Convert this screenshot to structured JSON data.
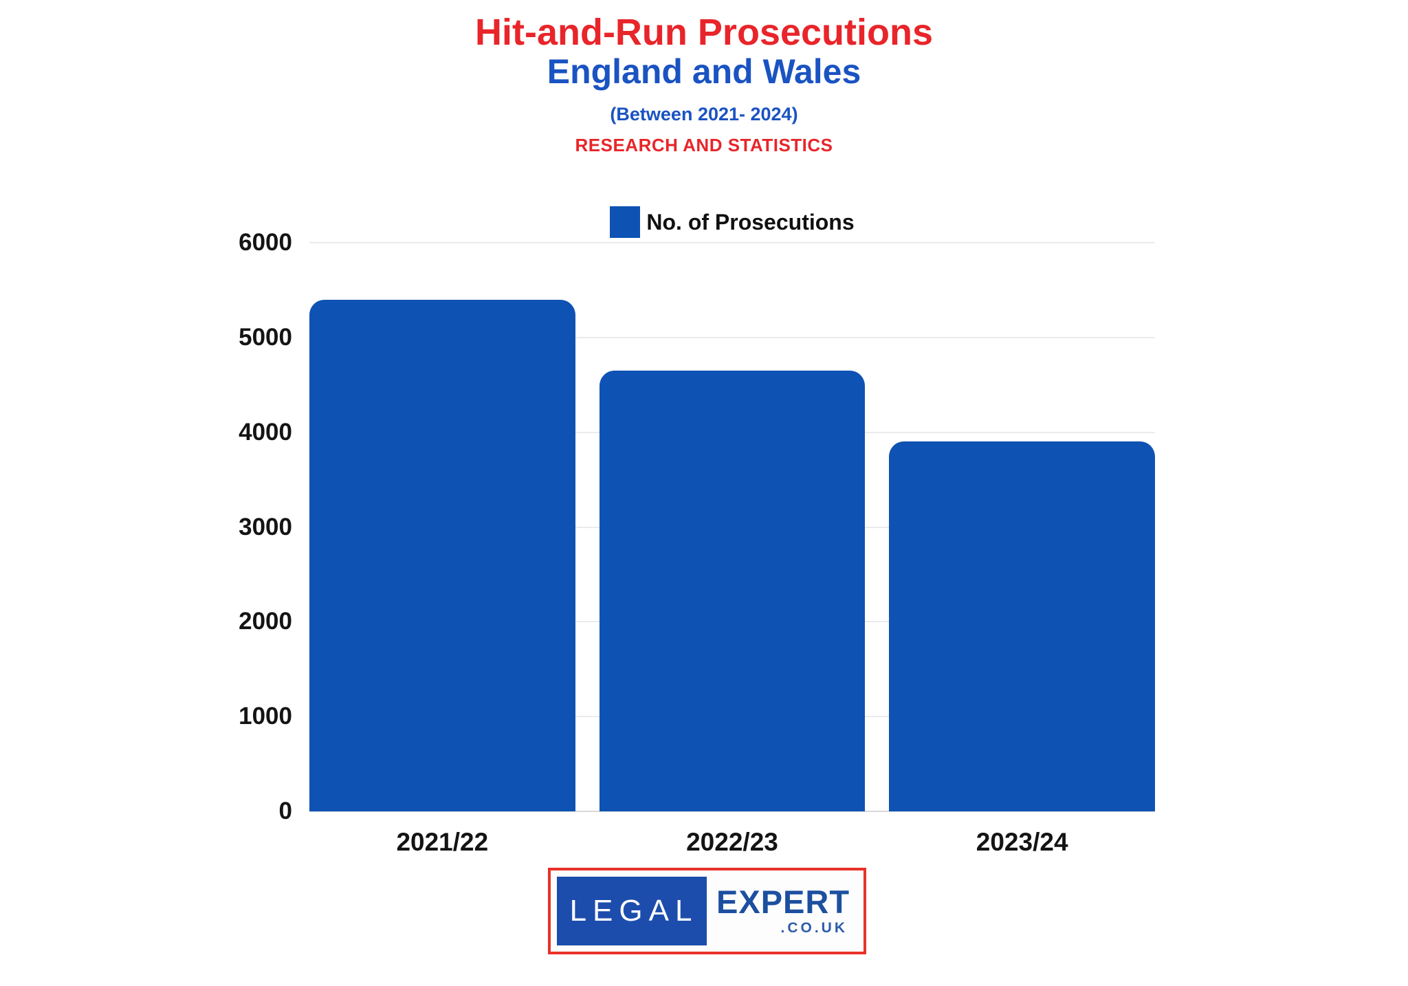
{
  "header": {
    "title": "Hit-and-Run Prosecutions",
    "subtitle": "England and Wales",
    "period": "(Between 2021- 2024)",
    "category": "RESEARCH AND STATISTICS"
  },
  "legend": {
    "label": "No. of Prosecutions"
  },
  "chart_data": {
    "type": "bar",
    "title": "Hit-and-Run Prosecutions England and Wales (Between 2021- 2024)",
    "categories": [
      "2021/22",
      "2022/23",
      "2023/24"
    ],
    "series": [
      {
        "name": "No. of Prosecutions",
        "values": [
          5400,
          4650,
          3900
        ]
      }
    ],
    "xlabel": "",
    "ylabel": "",
    "ylim": [
      0,
      6000
    ],
    "yticks": [
      0,
      1000,
      2000,
      3000,
      4000,
      5000,
      6000
    ],
    "grid": true,
    "legend_position": "top",
    "bar_color": "#0e52b4"
  },
  "footer_logo": {
    "legal": "LEGAL",
    "expert": "EXPERT",
    "suffix": ".CO.UK"
  },
  "colors": {
    "title_red": "#e8252a",
    "title_blue": "#1a53c2",
    "bar_blue": "#0e52b4",
    "grid_gray": "#ebebeb",
    "baseline_gray": "#d9d9d9",
    "axis_text": "#141414",
    "logo_border_red": "#e93128",
    "logo_box_blue": "#1d4dac",
    "logo_text_blue": "#1d4fa0",
    "logo_couk_blue": "#2d5cab"
  }
}
